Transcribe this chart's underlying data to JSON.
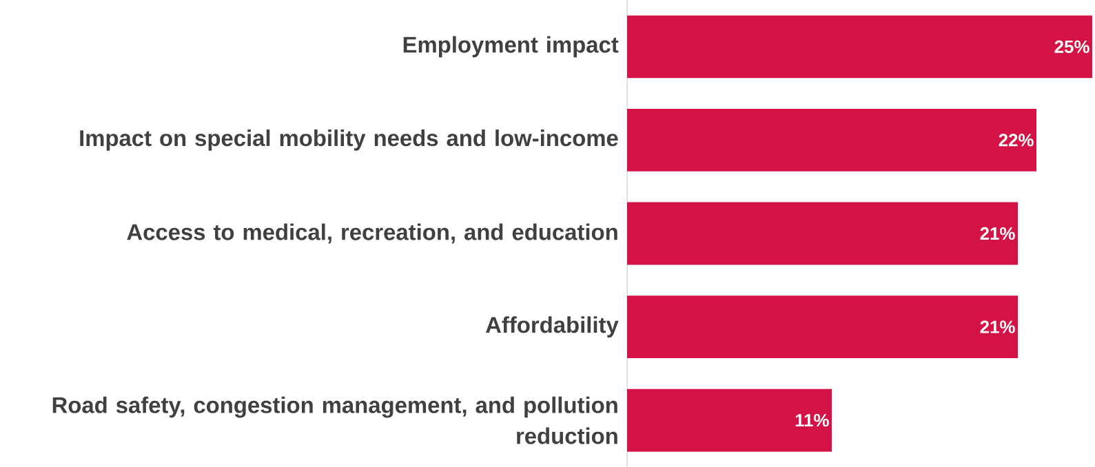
{
  "chart_data": {
    "type": "bar",
    "orientation": "horizontal",
    "categories": [
      "Employment impact",
      "Impact on special mobility needs and low-income",
      "Access to medical, recreation, and education",
      "Affordability",
      "Road safety, congestion management, and pollution reduction"
    ],
    "values": [
      25,
      22,
      21,
      21,
      11
    ],
    "value_labels": [
      "25%",
      "22%",
      "21%",
      "21%",
      "11%"
    ],
    "color": "#d31245",
    "grid": false,
    "legend": false
  }
}
